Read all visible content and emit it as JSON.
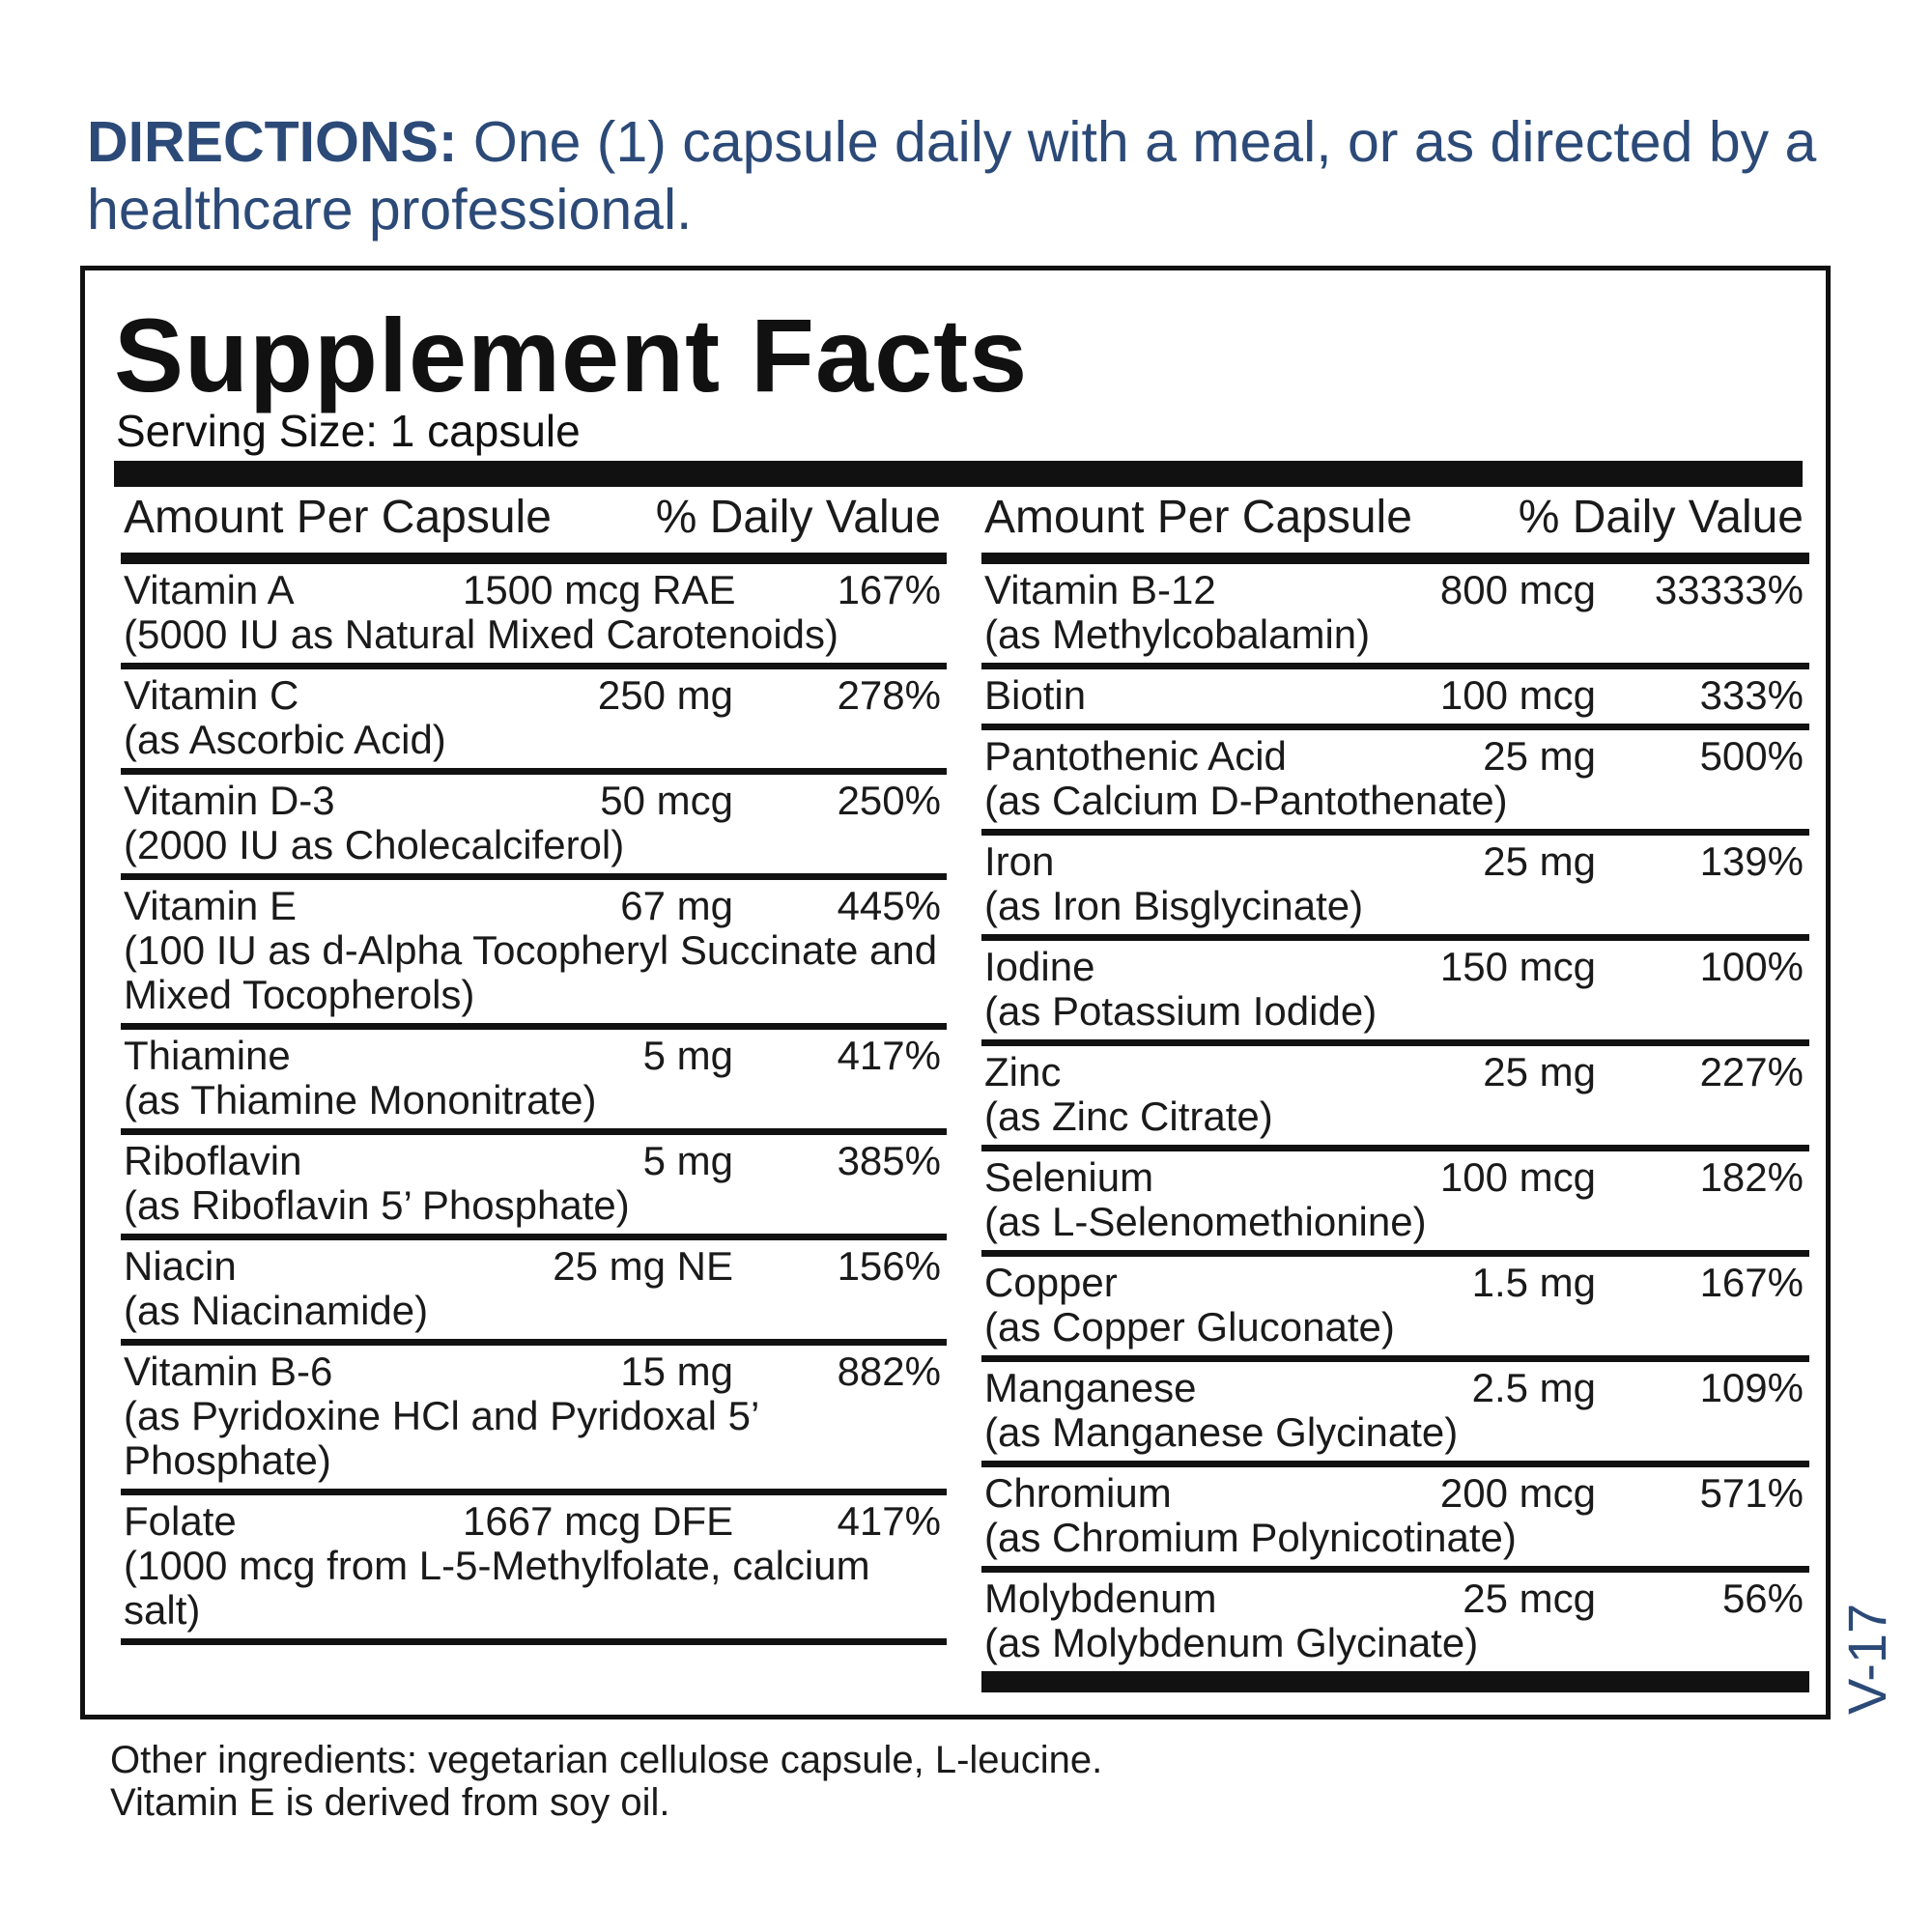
{
  "directions": {
    "lead": "DIRECTIONS:",
    "text": " One (1) capsule daily with a meal, or as directed by a healthcare professional."
  },
  "facts": {
    "title": "Supplement Facts",
    "serving_size": "Serving Size: 1 capsule",
    "header_amount": "Amount Per Capsule",
    "header_dv": "% Daily Value",
    "left": [
      {
        "name": "Vitamin A",
        "amount": "1500 mcg RAE",
        "dv": "167%",
        "sub": "(5000 IU as Natural Mixed Carotenoids)"
      },
      {
        "name": "Vitamin C",
        "amount": "250 mg",
        "dv": "278%",
        "sub": "(as Ascorbic Acid)"
      },
      {
        "name": "Vitamin D-3",
        "amount": "50 mcg",
        "dv": "250%",
        "sub": "(2000 IU as Cholecalciferol)"
      },
      {
        "name": "Vitamin E",
        "amount": "67 mg",
        "dv": "445%",
        "sub": "(100 IU as d-Alpha Tocopheryl Succinate and Mixed Tocopherols)"
      },
      {
        "name": "Thiamine",
        "amount": "5 mg",
        "dv": "417%",
        "sub": "(as Thiamine Mononitrate)"
      },
      {
        "name": "Riboflavin",
        "amount": "5 mg",
        "dv": "385%",
        "sub": "(as Riboflavin 5’ Phosphate)"
      },
      {
        "name": "Niacin",
        "amount": "25 mg NE",
        "dv": "156%",
        "sub": "(as Niacinamide)"
      },
      {
        "name": "Vitamin B-6",
        "amount": "15 mg",
        "dv": "882%",
        "sub": "(as Pyridoxine HCl and Pyridoxal 5’ Phosphate)"
      },
      {
        "name": "Folate",
        "amount": "1667 mcg DFE",
        "dv": "417%",
        "sub": "(1000 mcg from L-5-Methylfolate, calcium salt)"
      }
    ],
    "right": [
      {
        "name": "Vitamin B-12",
        "amount": "800 mcg",
        "dv": "33333%",
        "sub": "(as Methylcobalamin)"
      },
      {
        "name": "Biotin",
        "amount": "100 mcg",
        "dv": "333%",
        "sub": ""
      },
      {
        "name": "Pantothenic Acid",
        "amount": "25 mg",
        "dv": "500%",
        "sub": "(as Calcium D-Pantothenate)"
      },
      {
        "name": "Iron",
        "amount": "25 mg",
        "dv": "139%",
        "sub": "(as Iron Bisglycinate)"
      },
      {
        "name": "Iodine",
        "amount": "150 mcg",
        "dv": "100%",
        "sub": "(as Potassium Iodide)"
      },
      {
        "name": "Zinc",
        "amount": "25 mg",
        "dv": "227%",
        "sub": "(as Zinc Citrate)"
      },
      {
        "name": "Selenium",
        "amount": "100 mcg",
        "dv": "182%",
        "sub": "(as L-Selenomethionine)"
      },
      {
        "name": "Copper",
        "amount": "1.5 mg",
        "dv": "167%",
        "sub": "(as Copper Gluconate)"
      },
      {
        "name": "Manganese",
        "amount": "2.5 mg",
        "dv": "109%",
        "sub": "(as Manganese Glycinate)"
      },
      {
        "name": "Chromium",
        "amount": "200 mcg",
        "dv": "571%",
        "sub": "(as Chromium Polynicotinate)"
      },
      {
        "name": "Molybdenum",
        "amount": "25 mcg",
        "dv": "56%",
        "sub": "(as Molybdenum Glycinate)"
      }
    ]
  },
  "version": "V-17",
  "other_ingredients": {
    "line1": "Other ingredients: vegetarian cellulose capsule, L-leucine.",
    "line2": "Vitamin E is derived from soy oil."
  }
}
